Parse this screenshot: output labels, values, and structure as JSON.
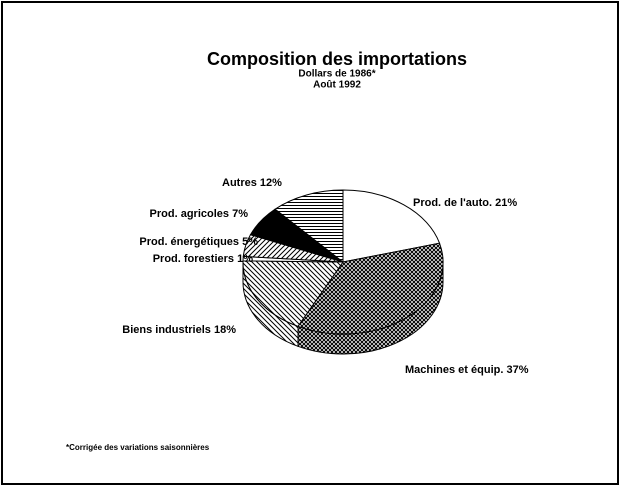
{
  "chart_data": {
    "type": "pie",
    "title": "Composition des importations",
    "subtitle": [
      "Dollars de 1986*",
      "Août 1992"
    ],
    "footnote": "*Corrigée des variations saisonnières",
    "categories": [
      "Prod. de l'auto.",
      "Machines et équip.",
      "Biens industriels",
      "Prod. forestiers",
      "Prod. énergétiques",
      "Prod. agricoles",
      "Autres"
    ],
    "values": [
      21,
      37,
      18,
      1,
      5,
      7,
      12
    ],
    "value_labels": [
      "21%",
      "37%",
      "18%",
      "1%",
      "5%",
      "7%",
      "12%"
    ],
    "fills": [
      "white",
      "crosshatch",
      "diagonal-back",
      "white",
      "diagonal-forward",
      "black",
      "horizontal"
    ],
    "direction": "clockwise",
    "start": "top"
  }
}
